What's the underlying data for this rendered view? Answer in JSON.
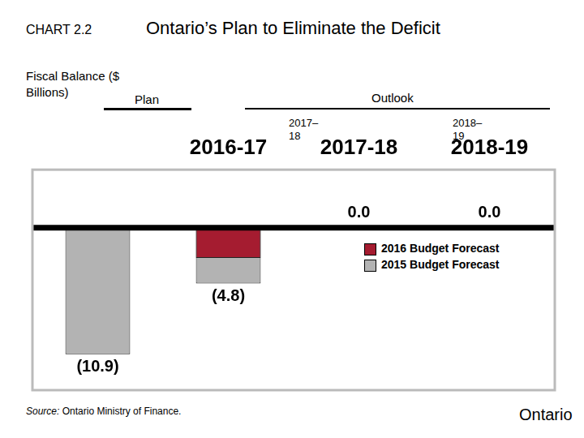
{
  "header": {
    "chart_number": "CHART 2.2",
    "title": "Ontario’s Plan to Eliminate the Deficit",
    "y_label": "Fiscal Balance ($ Billions)",
    "plan": "Plan",
    "outlook": "Outlook",
    "outlook_years": [
      "2017–18",
      "2018–19"
    ]
  },
  "chart_data": {
    "type": "bar",
    "categories": [
      null,
      "2016-17",
      "2017-18",
      "2018-19"
    ],
    "series": [
      {
        "name": "2016 Budget Forecast",
        "color": "#a51c30",
        "values": [
          null,
          -2.6,
          null,
          null
        ]
      },
      {
        "name": "2015 Budget Forecast",
        "color": "#b3b3b3",
        "values": [
          -10.9,
          -4.8,
          0.0,
          0.0
        ],
        "value_labels": [
          "(10.9)",
          "(4.8)",
          "0.0",
          "0.0"
        ]
      }
    ],
    "ylim": [
      -14,
      5
    ],
    "yticks": [],
    "grid": false,
    "legend": "center",
    "data_labels": true,
    "tick_labels": "x"
  },
  "source": {
    "label": "Source:",
    "text": "Ontario Ministry of Finance."
  },
  "logo": "Ontario"
}
